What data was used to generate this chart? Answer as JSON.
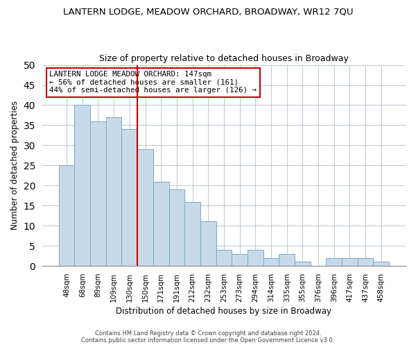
{
  "title": "LANTERN LODGE, MEADOW ORCHARD, BROADWAY, WR12 7QU",
  "subtitle": "Size of property relative to detached houses in Broadway",
  "xlabel": "Distribution of detached houses by size in Broadway",
  "ylabel": "Number of detached properties",
  "bar_labels": [
    "48sqm",
    "68sqm",
    "89sqm",
    "109sqm",
    "130sqm",
    "150sqm",
    "171sqm",
    "191sqm",
    "212sqm",
    "232sqm",
    "253sqm",
    "273sqm",
    "294sqm",
    "314sqm",
    "335sqm",
    "355sqm",
    "376sqm",
    "396sqm",
    "417sqm",
    "437sqm",
    "458sqm"
  ],
  "bar_values": [
    25,
    40,
    36,
    37,
    34,
    29,
    21,
    19,
    16,
    11,
    4,
    3,
    4,
    2,
    3,
    1,
    0,
    2,
    2,
    2,
    1
  ],
  "bar_color": "#c8daea",
  "bar_edge_color": "#6fa8d0",
  "vline_color": "#cc0000",
  "vline_index": 4.5,
  "ylim": [
    0,
    50
  ],
  "yticks": [
    0,
    5,
    10,
    15,
    20,
    25,
    30,
    35,
    40,
    45,
    50
  ],
  "annotation_line1": "LANTERN LODGE MEADOW ORCHARD: 147sqm",
  "annotation_line2": "← 56% of detached houses are smaller (161)",
  "annotation_line3": "44% of semi-detached houses are larger (126) →",
  "annotation_box_color": "#ffffff",
  "annotation_border_color": "#cc0000",
  "footer1": "Contains HM Land Registry data © Crown copyright and database right 2024.",
  "footer2": "Contains public sector information licensed under the Open Government Licence v3.0.",
  "background_color": "#ffffff",
  "grid_color": "#b0bec8"
}
